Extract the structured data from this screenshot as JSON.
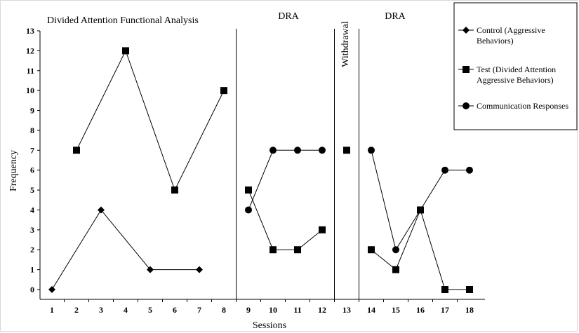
{
  "chart_data": {
    "type": "line",
    "xlabel": "Sessions",
    "ylabel": "Frequency",
    "ylim": [
      0,
      13
    ],
    "xlim": [
      1,
      18
    ],
    "categories": [
      "1",
      "2",
      "3",
      "4",
      "5",
      "6",
      "7",
      "8",
      "9",
      "10",
      "11",
      "12",
      "13",
      "14",
      "15",
      "16",
      "17",
      "18"
    ],
    "yticks": [
      "0",
      "1",
      "2",
      "3",
      "4",
      "5",
      "6",
      "7",
      "8",
      "9",
      "10",
      "11",
      "12",
      "13"
    ],
    "phases": [
      {
        "label": "Divided Attention Functional Analysis"
      },
      {
        "label": "DRA"
      },
      {
        "label": "Withdrawal"
      },
      {
        "label": "DRA"
      }
    ],
    "phase_lines_after_session": [
      8.5,
      12.5,
      13.5
    ],
    "legend_position": "top-right",
    "series": [
      {
        "name": "Control (Aggressive Behaviors)",
        "legend_lines": [
          "Control (Aggressive",
          "Behaviors)"
        ],
        "marker": "diamond",
        "segments": [
          [
            [
              1,
              0
            ],
            [
              3,
              4
            ],
            [
              5,
              1
            ],
            [
              7,
              1
            ]
          ]
        ]
      },
      {
        "name": "Test (Divided Attention Aggressive Behaviors)",
        "legend_lines": [
          "Test (Divided Attention",
          "Aggressive Behaviors)"
        ],
        "marker": "square",
        "segments": [
          [
            [
              2,
              7
            ],
            [
              4,
              12
            ],
            [
              6,
              5
            ],
            [
              8,
              10
            ]
          ],
          [
            [
              9,
              5
            ],
            [
              10,
              2
            ],
            [
              11,
              2
            ],
            [
              12,
              3
            ]
          ],
          [
            [
              13,
              7
            ]
          ],
          [
            [
              14,
              2
            ],
            [
              15,
              1
            ],
            [
              16,
              4
            ],
            [
              17,
              0
            ],
            [
              18,
              0
            ]
          ]
        ]
      },
      {
        "name": "Communication Responses",
        "legend_lines": [
          "Communication Responses"
        ],
        "marker": "circle",
        "segments": [
          [
            [
              9,
              4
            ],
            [
              10,
              7
            ],
            [
              11,
              7
            ],
            [
              12,
              7
            ]
          ],
          [
            [
              14,
              7
            ],
            [
              15,
              2
            ],
            [
              16,
              4
            ],
            [
              17,
              6
            ],
            [
              18,
              6
            ]
          ]
        ]
      }
    ]
  }
}
